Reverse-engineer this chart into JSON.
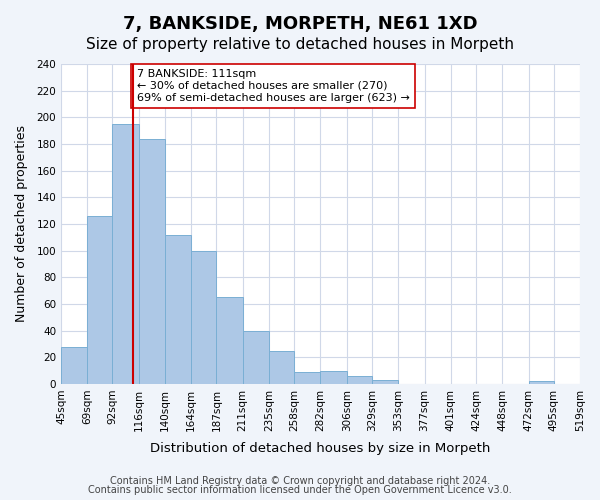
{
  "title": "7, BANKSIDE, MORPETH, NE61 1XD",
  "subtitle": "Size of property relative to detached houses in Morpeth",
  "xlabel": "Distribution of detached houses by size in Morpeth",
  "ylabel": "Number of detached properties",
  "bar_edges": [
    45,
    69,
    92,
    116,
    140,
    164,
    187,
    211,
    235,
    258,
    282,
    306,
    329,
    353,
    377,
    401,
    424,
    448,
    472,
    495,
    519
  ],
  "bar_heights": [
    28,
    126,
    195,
    184,
    112,
    100,
    65,
    40,
    25,
    9,
    10,
    6,
    3,
    0,
    0,
    0,
    0,
    0,
    2,
    0
  ],
  "bar_color": "#adc8e6",
  "bar_edgecolor": "#7aafd4",
  "vline_x": 111,
  "vline_color": "#cc0000",
  "annotation_text": "7 BANKSIDE: 111sqm\n← 30% of detached houses are smaller (270)\n69% of semi-detached houses are larger (623) →",
  "annotation_box_edgecolor": "#cc0000",
  "annotation_box_facecolor": "#ffffff",
  "tick_labels": [
    "45sqm",
    "69sqm",
    "92sqm",
    "116sqm",
    "140sqm",
    "164sqm",
    "187sqm",
    "211sqm",
    "235sqm",
    "258sqm",
    "282sqm",
    "306sqm",
    "329sqm",
    "353sqm",
    "377sqm",
    "401sqm",
    "424sqm",
    "448sqm",
    "472sqm",
    "495sqm",
    "519sqm"
  ],
  "ylim": [
    0,
    240
  ],
  "yticks": [
    0,
    20,
    40,
    60,
    80,
    100,
    120,
    140,
    160,
    180,
    200,
    220,
    240
  ],
  "footnote1": "Contains HM Land Registry data © Crown copyright and database right 2024.",
  "footnote2": "Contains public sector information licensed under the Open Government Licence v3.0.",
  "bg_color": "#f0f4fa",
  "plot_bg_color": "#ffffff",
  "grid_color": "#d0d8e8",
  "title_fontsize": 13,
  "subtitle_fontsize": 11,
  "axis_label_fontsize": 9,
  "tick_fontsize": 7.5,
  "footnote_fontsize": 7
}
